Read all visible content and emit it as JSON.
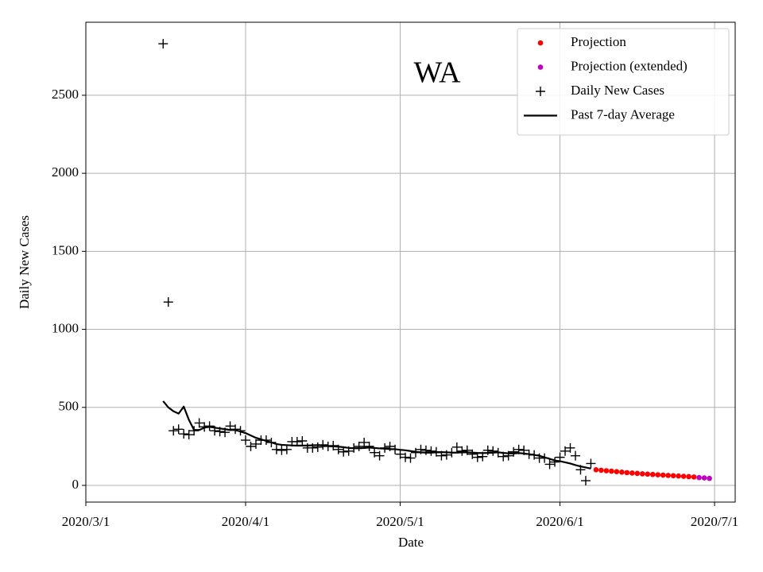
{
  "chart_data": {
    "type": "line",
    "annotation": "WA",
    "xlabel": "Date",
    "ylabel": "Daily New Cases",
    "xlim": [
      "2020/3/1",
      "2020/7/5"
    ],
    "xticks": [
      "2020/3/1",
      "2020/4/1",
      "2020/5/1",
      "2020/6/1",
      "2020/7/1"
    ],
    "ylim": [
      -107,
      2968
    ],
    "yticks": [
      0,
      500,
      1000,
      1500,
      2000,
      2500
    ],
    "grid": true,
    "legend": "upper right",
    "series": [
      {
        "name": "Projection",
        "color": "#ff0000",
        "style": "dot",
        "x": [
          "2020/6/8",
          "2020/6/9",
          "2020/6/10",
          "2020/6/11",
          "2020/6/12",
          "2020/6/13",
          "2020/6/14",
          "2020/6/15",
          "2020/6/16",
          "2020/6/17",
          "2020/6/18",
          "2020/6/19",
          "2020/6/20",
          "2020/6/21",
          "2020/6/22",
          "2020/6/23",
          "2020/6/24",
          "2020/6/25",
          "2020/6/26",
          "2020/6/27"
        ],
        "values": [
          100,
          97,
          94,
          91,
          88,
          85,
          82,
          79,
          77,
          74,
          72,
          70,
          68,
          66,
          64,
          62,
          60,
          58,
          56,
          54
        ]
      },
      {
        "name": "Projection (extended)",
        "color": "#bf00bf",
        "style": "dot",
        "x": [
          "2020/6/28",
          "2020/6/29",
          "2020/6/30"
        ],
        "values": [
          50,
          48,
          45
        ]
      },
      {
        "name": "Daily New Cases",
        "color": "#000000",
        "style": "plus",
        "x": [
          "2020/3/16",
          "2020/3/17",
          "2020/3/18",
          "2020/3/19",
          "2020/3/20",
          "2020/3/21",
          "2020/3/22",
          "2020/3/23",
          "2020/3/24",
          "2020/3/25",
          "2020/3/26",
          "2020/3/27",
          "2020/3/28",
          "2020/3/29",
          "2020/3/30",
          "2020/3/31",
          "2020/4/1",
          "2020/4/2",
          "2020/4/3",
          "2020/4/4",
          "2020/4/5",
          "2020/4/6",
          "2020/4/7",
          "2020/4/8",
          "2020/4/9",
          "2020/4/10",
          "2020/4/11",
          "2020/4/12",
          "2020/4/13",
          "2020/4/14",
          "2020/4/15",
          "2020/4/16",
          "2020/4/17",
          "2020/4/18",
          "2020/4/19",
          "2020/4/20",
          "2020/4/21",
          "2020/4/22",
          "2020/4/23",
          "2020/4/24",
          "2020/4/25",
          "2020/4/26",
          "2020/4/27",
          "2020/4/28",
          "2020/4/29",
          "2020/4/30",
          "2020/5/1",
          "2020/5/2",
          "2020/5/3",
          "2020/5/4",
          "2020/5/5",
          "2020/5/6",
          "2020/5/7",
          "2020/5/8",
          "2020/5/9",
          "2020/5/10",
          "2020/5/11",
          "2020/5/12",
          "2020/5/13",
          "2020/5/14",
          "2020/5/15",
          "2020/5/16",
          "2020/5/17",
          "2020/5/18",
          "2020/5/19",
          "2020/5/20",
          "2020/5/21",
          "2020/5/22",
          "2020/5/23",
          "2020/5/24",
          "2020/5/25",
          "2020/5/26",
          "2020/5/27",
          "2020/5/28",
          "2020/5/29",
          "2020/5/30",
          "2020/5/31",
          "2020/6/1",
          "2020/6/2",
          "2020/6/3",
          "2020/6/4",
          "2020/6/5",
          "2020/6/6",
          "2020/6/7"
        ],
        "values": [
          2830,
          1175,
          350,
          360,
          330,
          325,
          350,
          400,
          375,
          380,
          350,
          345,
          340,
          380,
          360,
          350,
          290,
          250,
          265,
          290,
          290,
          275,
          230,
          225,
          230,
          280,
          280,
          285,
          240,
          240,
          245,
          260,
          250,
          255,
          230,
          215,
          220,
          240,
          250,
          275,
          250,
          210,
          190,
          240,
          250,
          230,
          200,
          180,
          175,
          210,
          230,
          225,
          220,
          215,
          190,
          195,
          210,
          245,
          220,
          225,
          200,
          180,
          185,
          225,
          220,
          210,
          185,
          190,
          215,
          230,
          225,
          200,
          195,
          175,
          175,
          135,
          150,
          180,
          220,
          240,
          190,
          100,
          30,
          140
        ]
      },
      {
        "name": "Past 7-day Average",
        "color": "#000000",
        "style": "line",
        "x": [
          "2020/3/16",
          "2020/3/17",
          "2020/3/18",
          "2020/3/19",
          "2020/3/20",
          "2020/3/21",
          "2020/3/22",
          "2020/3/23",
          "2020/3/24",
          "2020/3/25",
          "2020/3/26",
          "2020/3/27",
          "2020/3/28",
          "2020/3/29",
          "2020/3/30",
          "2020/3/31",
          "2020/4/1",
          "2020/4/2",
          "2020/4/3",
          "2020/4/4",
          "2020/4/5",
          "2020/4/6",
          "2020/4/7",
          "2020/4/8",
          "2020/4/9",
          "2020/4/10",
          "2020/4/11",
          "2020/4/12",
          "2020/4/13",
          "2020/4/14",
          "2020/4/15",
          "2020/4/16",
          "2020/4/17",
          "2020/4/18",
          "2020/4/19",
          "2020/4/20",
          "2020/4/21",
          "2020/4/22",
          "2020/4/23",
          "2020/4/24",
          "2020/4/25",
          "2020/4/26",
          "2020/4/27",
          "2020/4/28",
          "2020/4/29",
          "2020/4/30",
          "2020/5/1",
          "2020/5/2",
          "2020/5/3",
          "2020/5/4",
          "2020/5/5",
          "2020/5/6",
          "2020/5/7",
          "2020/5/8",
          "2020/5/9",
          "2020/5/10",
          "2020/5/11",
          "2020/5/12",
          "2020/5/13",
          "2020/5/14",
          "2020/5/15",
          "2020/5/16",
          "2020/5/17",
          "2020/5/18",
          "2020/5/19",
          "2020/5/20",
          "2020/5/21",
          "2020/5/22",
          "2020/5/23",
          "2020/5/24",
          "2020/5/25",
          "2020/5/26",
          "2020/5/27",
          "2020/5/28",
          "2020/5/29",
          "2020/5/30",
          "2020/5/31",
          "2020/6/1",
          "2020/6/2",
          "2020/6/3",
          "2020/6/4",
          "2020/6/5",
          "2020/6/6",
          "2020/6/7"
        ],
        "values": [
          540,
          500,
          475,
          460,
          505,
          420,
          355,
          355,
          370,
          375,
          370,
          365,
          360,
          355,
          355,
          345,
          335,
          320,
          305,
          295,
          285,
          275,
          265,
          260,
          258,
          256,
          255,
          255,
          255,
          257,
          258,
          255,
          252,
          250,
          248,
          245,
          240,
          238,
          238,
          240,
          242,
          240,
          237,
          235,
          233,
          232,
          228,
          225,
          220,
          215,
          212,
          210,
          210,
          212,
          213,
          212,
          210,
          210,
          212,
          212,
          210,
          208,
          207,
          208,
          210,
          212,
          208,
          205,
          205,
          207,
          205,
          200,
          195,
          190,
          180,
          170,
          160,
          155,
          148,
          140,
          130,
          122,
          115,
          108
        ]
      }
    ]
  }
}
